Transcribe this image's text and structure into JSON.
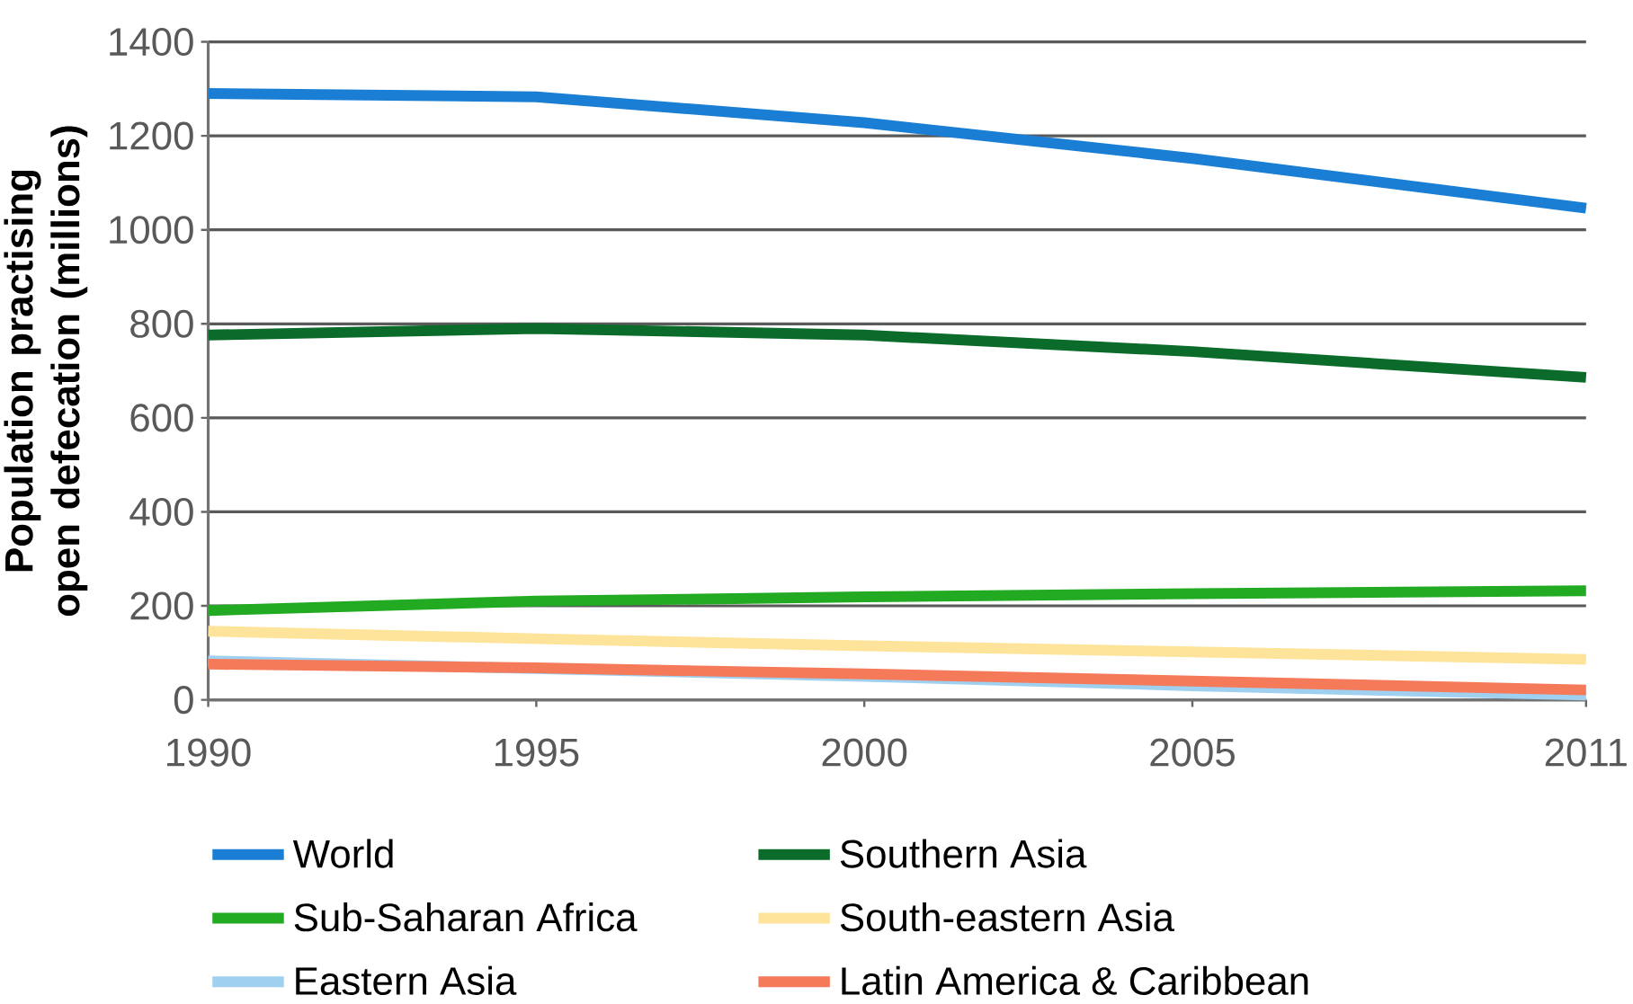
{
  "chart_data": {
    "type": "line",
    "ylabel": "Population practising open defecation (millions)",
    "x": [
      1990,
      1995,
      2000,
      2005,
      2011
    ],
    "series": [
      {
        "name": "World",
        "color": "#1a7fd4",
        "values": [
          1290,
          1283,
          1228,
          1152,
          1046
        ]
      },
      {
        "name": "Southern Asia",
        "color": "#0a6b2a",
        "values": [
          776,
          790,
          776,
          741,
          686
        ]
      },
      {
        "name": "Sub-Saharan Africa",
        "color": "#22aa22",
        "values": [
          190,
          210,
          219,
          226,
          232
        ]
      },
      {
        "name": "South-eastern Asia",
        "color": "#fde49a",
        "values": [
          146,
          130,
          115,
          102,
          86
        ]
      },
      {
        "name": "Eastern Asia",
        "color": "#9fd0f0",
        "values": [
          83,
          null,
          50,
          30,
          10
        ]
      },
      {
        "name": "Latin America & Caribbean",
        "color": "#f47a5a",
        "values": [
          76,
          68,
          55,
          40,
          21
        ]
      }
    ],
    "xlim": [
      1990,
      2011
    ],
    "xticks": [
      1990,
      1995,
      2000,
      2005,
      2011
    ],
    "ylim": [
      0,
      1400
    ],
    "yticks": [
      0,
      200,
      400,
      600,
      800,
      1000,
      1200,
      1400
    ],
    "grid": "y",
    "legend": "bottom",
    "marker": "none",
    "line_style": "solid"
  }
}
